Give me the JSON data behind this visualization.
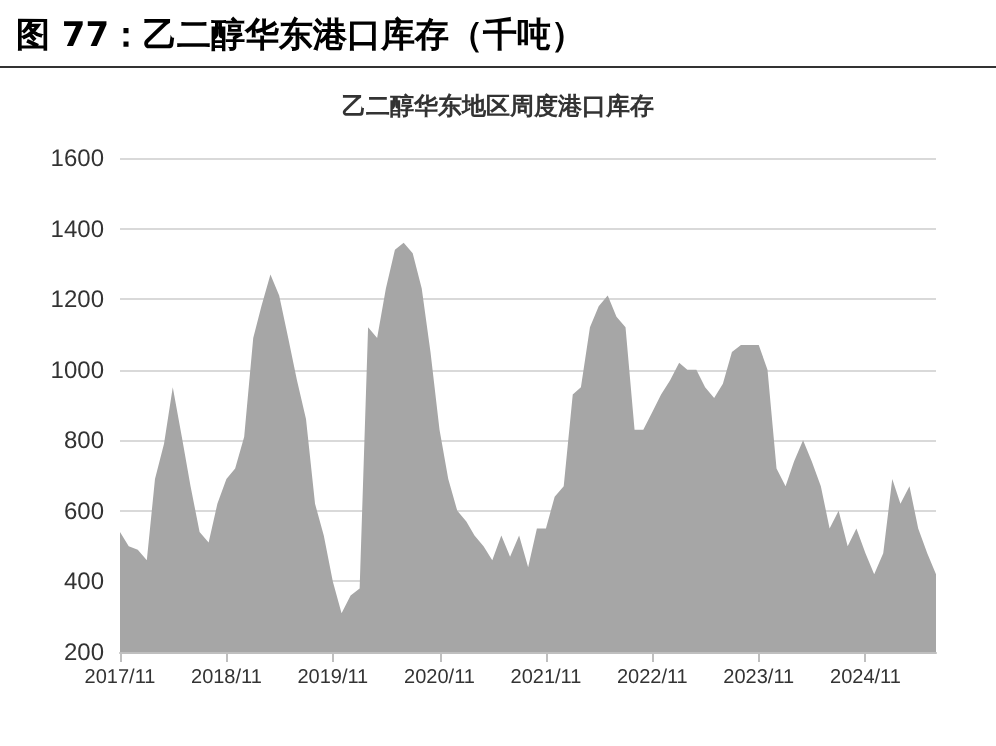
{
  "chart_data": {
    "type": "area",
    "title": "图 77：乙二醇华东港口库存（千吨）",
    "subtitle": "乙二醇华东地区周度港口库存",
    "x": [
      "2017-11",
      "2017-12",
      "2018-01",
      "2018-02",
      "2018-03",
      "2018-04",
      "2018-05",
      "2018-06",
      "2018-07",
      "2018-08",
      "2018-09",
      "2018-10",
      "2018-11",
      "2018-12",
      "2019-01",
      "2019-02",
      "2019-03",
      "2019-04",
      "2019-05",
      "2019-06",
      "2019-07",
      "2019-08",
      "2019-09",
      "2019-10",
      "2019-11",
      "2019-12",
      "2020-01",
      "2020-02",
      "2020-03",
      "2020-04",
      "2020-05",
      "2020-06",
      "2020-07",
      "2020-08",
      "2020-09",
      "2020-10",
      "2020-11",
      "2020-12",
      "2021-01",
      "2021-02",
      "2021-03",
      "2021-04",
      "2021-05",
      "2021-06",
      "2021-07",
      "2021-08",
      "2021-09",
      "2021-10",
      "2021-11",
      "2021-12",
      "2022-01",
      "2022-02",
      "2022-03",
      "2022-04",
      "2022-05",
      "2022-06",
      "2022-07",
      "2022-08",
      "2022-09",
      "2022-10",
      "2022-11",
      "2022-12",
      "2023-01",
      "2023-02",
      "2023-03",
      "2023-04",
      "2023-05",
      "2023-06",
      "2023-07",
      "2023-08",
      "2023-09",
      "2023-10",
      "2023-11",
      "2023-12",
      "2024-01",
      "2024-02",
      "2024-03",
      "2024-04",
      "2024-05",
      "2024-06",
      "2024-07",
      "2024-08",
      "2024-09",
      "2024-10",
      "2024-11",
      "2024-12",
      "2025-01",
      "2025-02",
      "2025-03",
      "2025-04",
      "2025-05",
      "2025-06",
      "2025-07"
    ],
    "series": [
      {
        "color": "#a6a6a6",
        "values": [
          540,
          500,
          490,
          460,
          690,
          790,
          950,
          810,
          670,
          540,
          510,
          620,
          690,
          720,
          810,
          1090,
          1180,
          1270,
          1210,
          1090,
          970,
          860,
          620,
          530,
          400,
          310,
          360,
          380,
          1120,
          1090,
          1230,
          1340,
          1360,
          1330,
          1230,
          1050,
          830,
          690,
          600,
          570,
          530,
          500,
          460,
          530,
          470,
          530,
          440,
          550,
          550,
          640,
          670,
          930,
          950,
          1120,
          1180,
          1210,
          1150,
          1120,
          830,
          830,
          880,
          930,
          970,
          1020,
          1000,
          1000,
          950,
          920,
          960,
          1050,
          1070,
          1070,
          1070,
          1000,
          720,
          670,
          740,
          800,
          740,
          670,
          550,
          600,
          500,
          550,
          480,
          420,
          480,
          690,
          620,
          670,
          550,
          480,
          420
        ]
      }
    ],
    "xlim": [
      "2017-11",
      "2025-07"
    ],
    "xticks": [
      {
        "value": "2017-11",
        "label": "2017/11"
      },
      {
        "value": "2018-11",
        "label": "2018/11"
      },
      {
        "value": "2019-11",
        "label": "2019/11"
      },
      {
        "value": "2020-11",
        "label": "2020/11"
      },
      {
        "value": "2021-11",
        "label": "2021/11"
      },
      {
        "value": "2022-11",
        "label": "2022/11"
      },
      {
        "value": "2023-11",
        "label": "2023/11"
      },
      {
        "value": "2024-11",
        "label": "2024/11"
      }
    ],
    "ylim": [
      200,
      1600
    ],
    "yticks": [
      200,
      400,
      600,
      800,
      1000,
      1200,
      1400,
      1600
    ],
    "grid": "y"
  }
}
